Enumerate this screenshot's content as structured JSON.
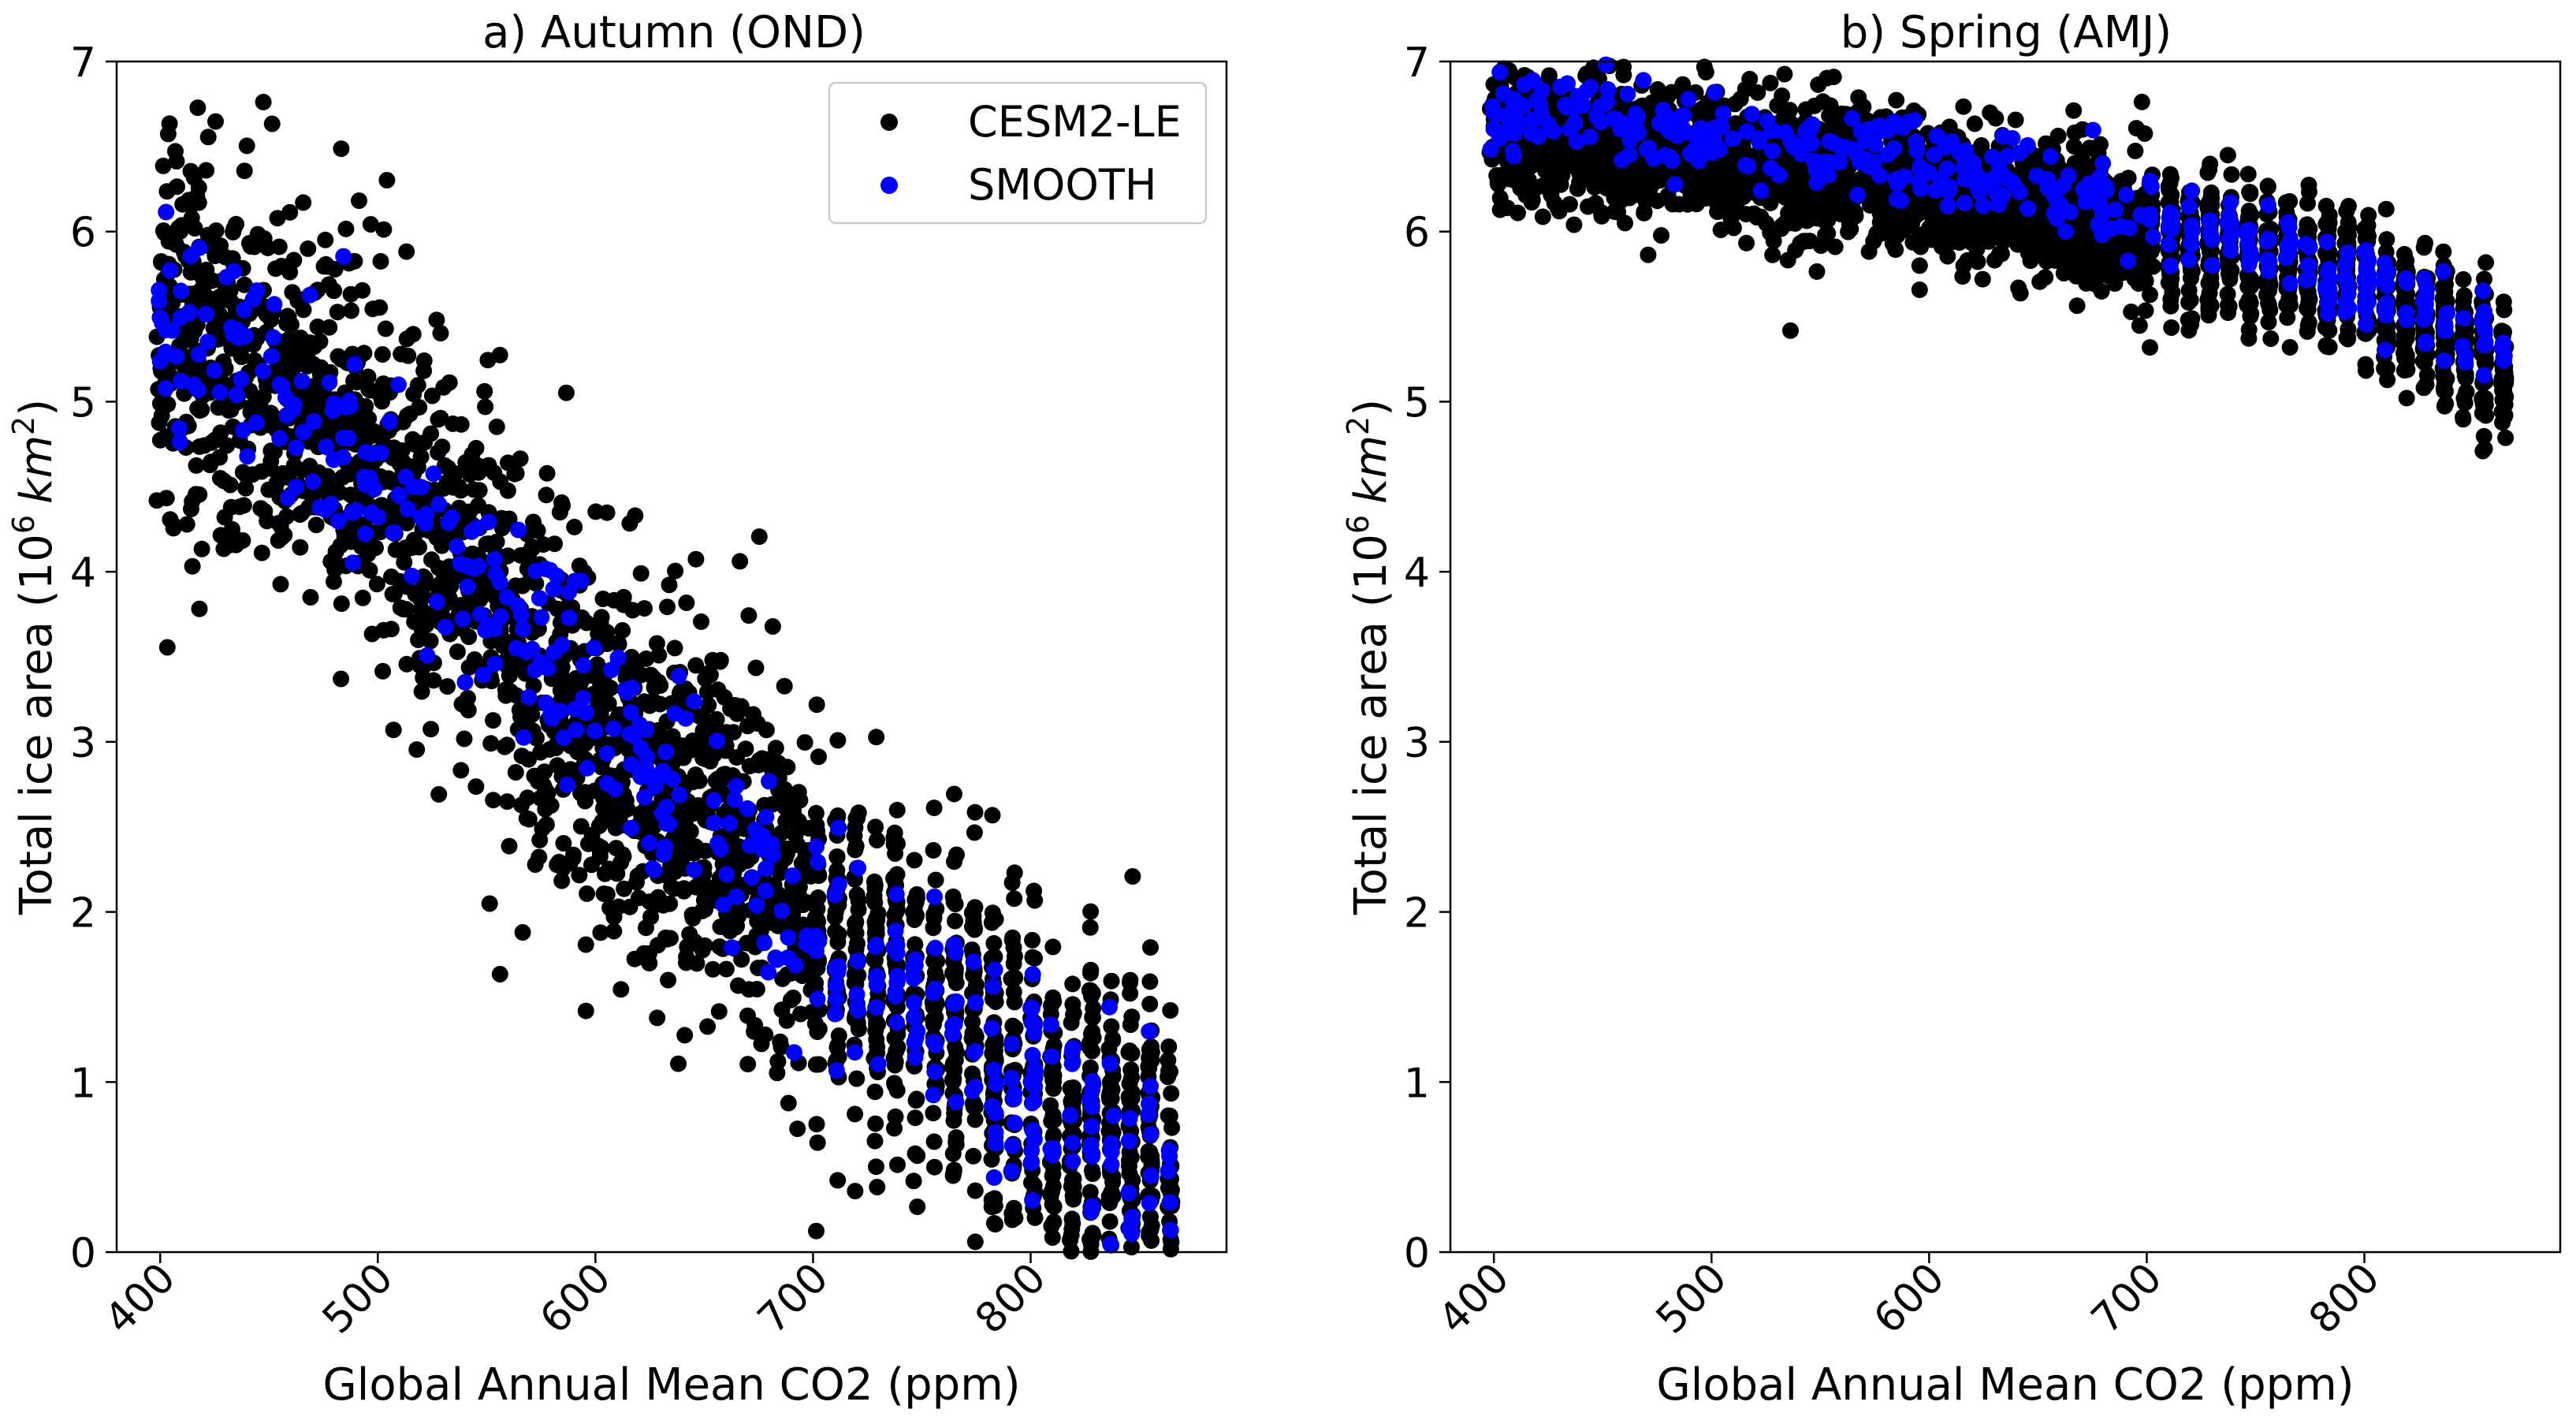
{
  "chart_data": [
    {
      "type": "scatter",
      "title": "a) Autumn (OND)",
      "xlabel": "Global Annual Mean CO2 (ppm)",
      "ylabel_prefix": "Total ice area (10",
      "ylabel_sup": "6",
      "ylabel_unit": "km",
      "ylabel_unit_sup": "2",
      "ylabel_suffix": ")",
      "xlim": [
        380,
        890
      ],
      "ylim": [
        0,
        7
      ],
      "xticks": [
        "400",
        "500",
        "600",
        "700",
        "800"
      ],
      "yticks": [
        "0",
        "1",
        "2",
        "3",
        "4",
        "5",
        "6",
        "7"
      ],
      "legend": {
        "placement": "top-right",
        "entries": [
          "CESM2-LE",
          "SMOOTH"
        ]
      },
      "grid": false,
      "series": [
        {
          "name": "CESM2-LE",
          "color": "#000000",
          "trend": [
            [
              400,
              5.5
            ],
            [
              500,
              4.6
            ],
            [
              600,
              3.0
            ],
            [
              700,
              2.0
            ],
            [
              800,
              0.95
            ],
            [
              865,
              0.5
            ]
          ],
          "x_range": [
            398,
            866
          ],
          "spread": 0.55,
          "count": 2600
        },
        {
          "name": "SMOOTH",
          "color": "#0000ff",
          "trend": [
            [
              400,
              5.55
            ],
            [
              500,
              4.55
            ],
            [
              600,
              3.15
            ],
            [
              700,
              1.85
            ],
            [
              800,
              0.95
            ],
            [
              865,
              0.45
            ]
          ],
          "x_range": [
            398,
            866
          ],
          "spread": 0.32,
          "count": 420
        }
      ]
    },
    {
      "type": "scatter",
      "title": "b) Spring (AMJ)",
      "xlabel": "Global Annual Mean CO2 (ppm)",
      "ylabel_prefix": "Total ice area (10",
      "ylabel_sup": "6",
      "ylabel_unit": "km",
      "ylabel_unit_sup": "2",
      "ylabel_suffix": ")",
      "xlim": [
        380,
        890
      ],
      "ylim": [
        0,
        7
      ],
      "xticks": [
        "400",
        "500",
        "600",
        "700",
        "800"
      ],
      "yticks": [
        "0",
        "1",
        "2",
        "3",
        "4",
        "5",
        "6",
        "7"
      ],
      "grid": false,
      "series": [
        {
          "name": "CESM2-LE",
          "color": "#000000",
          "trend": [
            [
              400,
              6.58
            ],
            [
              500,
              6.45
            ],
            [
              600,
              6.25
            ],
            [
              700,
              6.0
            ],
            [
              800,
              5.7
            ],
            [
              865,
              5.2
            ]
          ],
          "x_range": [
            398,
            866
          ],
          "spread": 0.2,
          "count": 2600
        },
        {
          "name": "SMOOTH",
          "color": "#0000ff",
          "trend": [
            [
              400,
              6.72
            ],
            [
              500,
              6.55
            ],
            [
              600,
              6.38
            ],
            [
              700,
              6.1
            ],
            [
              800,
              5.7
            ],
            [
              865,
              5.3
            ]
          ],
          "x_range": [
            398,
            866
          ],
          "spread": 0.12,
          "count": 420
        }
      ]
    }
  ]
}
